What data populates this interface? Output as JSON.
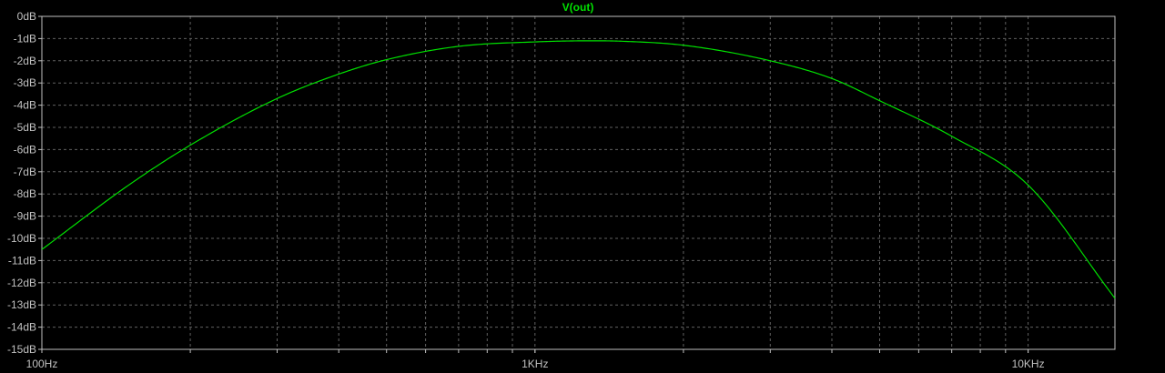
{
  "chart_data": {
    "type": "line",
    "title": "V(out)",
    "x_scale": "log",
    "xlim_hz": [
      100,
      15000
    ],
    "ylim_db": [
      -15,
      0
    ],
    "grid": true,
    "colors": {
      "background": "#000000",
      "grid": "#606060",
      "axis": "#c0c0c0",
      "trace": "#00e000",
      "title": "#00e000"
    },
    "y_tick_labels": [
      "0dB",
      "-1dB",
      "-2dB",
      "-3dB",
      "-4dB",
      "-5dB",
      "-6dB",
      "-7dB",
      "-8dB",
      "-9dB",
      "-10dB",
      "-11dB",
      "-12dB",
      "-13dB",
      "-14dB",
      "-15dB"
    ],
    "x_tick_labels": [
      {
        "value": 100,
        "label": "100Hz"
      },
      {
        "value": 1000,
        "label": "1KHz"
      },
      {
        "value": 10000,
        "label": "10KHz"
      }
    ],
    "series": [
      {
        "name": "V(out)",
        "x": [
          100,
          150,
          200,
          300,
          400,
          500,
          700,
          1000,
          1300,
          1500,
          2000,
          3000,
          4000,
          5000,
          7000,
          10000,
          15000
        ],
        "y": [
          -10.5,
          -7.6,
          -5.8,
          -3.7,
          -2.6,
          -1.95,
          -1.35,
          -1.15,
          -1.1,
          -1.12,
          -1.3,
          -2.0,
          -2.8,
          -3.8,
          -5.4,
          -7.6,
          -12.7
        ]
      }
    ]
  }
}
